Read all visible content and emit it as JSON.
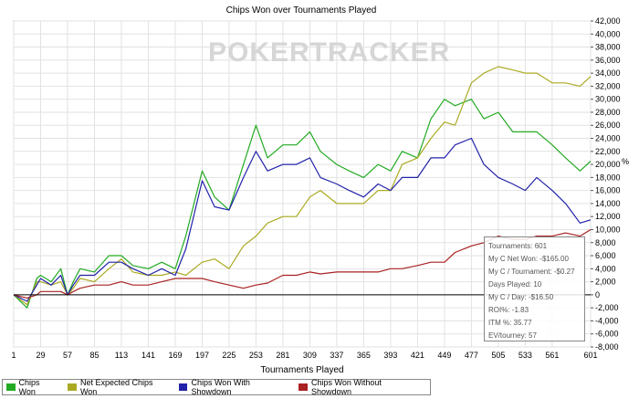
{
  "chart_data": {
    "type": "line",
    "title": "Chips Won over Tournaments Played",
    "xlabel": "Tournaments Played",
    "ylabel": "",
    "x_ticks": [
      1,
      29,
      57,
      85,
      113,
      141,
      169,
      197,
      225,
      253,
      281,
      309,
      337,
      365,
      393,
      421,
      449,
      477,
      505,
      533,
      561,
      601
    ],
    "y_ticks": [
      -8000,
      -6000,
      -4000,
      -2000,
      0,
      2000,
      4000,
      6000,
      8000,
      10000,
      12000,
      14000,
      16000,
      18000,
      20000,
      22000,
      24000,
      26000,
      28000,
      30000,
      32000,
      34000,
      36000,
      38000,
      40000,
      42000
    ],
    "y_tick_labels": [
      "-8,000",
      "-6,000",
      "-4,000",
      "-2,000",
      "0",
      "2,000",
      "4,000",
      "6,000",
      "8,000",
      "10,000",
      "12,000",
      "14,000",
      "16,000",
      "18,000",
      "20,000",
      "22,000",
      "24,000",
      "26,000",
      "28,000",
      "30,000",
      "32,000",
      "34,000",
      "36,000",
      "38,000",
      "40,000",
      "42,000"
    ],
    "xlim": [
      1,
      601
    ],
    "ylim": [
      -8000,
      42000
    ],
    "grid": true,
    "legend_position": "bottom",
    "watermark": "POKERTRACKER",
    "x": [
      1,
      15,
      25,
      29,
      40,
      50,
      57,
      63,
      70,
      85,
      100,
      113,
      125,
      141,
      155,
      169,
      180,
      197,
      210,
      225,
      240,
      253,
      265,
      281,
      295,
      309,
      320,
      337,
      350,
      365,
      380,
      393,
      405,
      421,
      435,
      449,
      460,
      477,
      490,
      505,
      520,
      533,
      545,
      561,
      575,
      590,
      601
    ],
    "series": [
      {
        "name": "Chips Won",
        "color": "#22aa22",
        "values": [
          0,
          -2000,
          2500,
          3000,
          2000,
          4000,
          0,
          2000,
          4000,
          3500,
          6000,
          6000,
          4500,
          4000,
          5000,
          4000,
          9000,
          19000,
          15000,
          13000,
          20000,
          26000,
          21000,
          23000,
          23000,
          25000,
          22000,
          20000,
          19000,
          18000,
          20000,
          19000,
          22000,
          21000,
          27000,
          30000,
          29000,
          30000,
          27000,
          28000,
          25000,
          25000,
          25000,
          23000,
          21000,
          19000,
          20500
        ]
      },
      {
        "name": "Net Expected Chips Won",
        "color": "#aaaa22",
        "values": [
          0,
          -1500,
          2000,
          2000,
          1500,
          2000,
          0,
          1000,
          2500,
          2000,
          4000,
          5500,
          3500,
          3000,
          3000,
          3500,
          3000,
          5000,
          5500,
          4000,
          7500,
          9000,
          11000,
          12000,
          12000,
          15000,
          16000,
          14000,
          14000,
          14000,
          16000,
          16000,
          20000,
          21000,
          24000,
          26500,
          26000,
          32500,
          34000,
          35000,
          34500,
          34000,
          34000,
          32500,
          32500,
          32000,
          33500
        ]
      },
      {
        "name": "Chips Won With Showdown",
        "color": "#2222aa",
        "values": [
          0,
          -1000,
          1500,
          2500,
          1500,
          3000,
          0,
          1500,
          3000,
          3000,
          5000,
          5000,
          4000,
          3000,
          4000,
          3000,
          7000,
          17500,
          13500,
          13000,
          18000,
          22000,
          19000,
          20000,
          20000,
          21000,
          18000,
          17000,
          16000,
          15000,
          17000,
          16000,
          18000,
          18000,
          21000,
          21000,
          23000,
          24000,
          20000,
          18000,
          17000,
          16000,
          18000,
          16000,
          14000,
          11000,
          11500
        ]
      },
      {
        "name": "Chips Won Without Showdown",
        "color": "#aa2222",
        "values": [
          0,
          -500,
          0,
          500,
          500,
          500,
          0,
          500,
          1000,
          1500,
          1500,
          2000,
          1500,
          1500,
          2000,
          2500,
          2500,
          2500,
          2000,
          1500,
          1000,
          1500,
          1800,
          3000,
          3000,
          3500,
          3200,
          3500,
          3500,
          3500,
          3500,
          4000,
          4000,
          4500,
          5000,
          5000,
          6500,
          7500,
          8000,
          9000,
          8500,
          8500,
          9000,
          9000,
          9500,
          9000,
          10000
        ]
      }
    ]
  },
  "stats": [
    "Tournaments: 601",
    "My C Net Won: -$165.00",
    "My C / Tournament: -$0.27",
    "Days Played: 10",
    "My C / Day: -$16.50",
    "ROI%: -1.83",
    "ITM %: 35.77",
    "EV/tourney: 57"
  ],
  "legend": {
    "items": [
      "Chips Won",
      "Net Expected Chips Won",
      "Chips Won With Showdown",
      "Chips Won Without Showdown"
    ]
  }
}
